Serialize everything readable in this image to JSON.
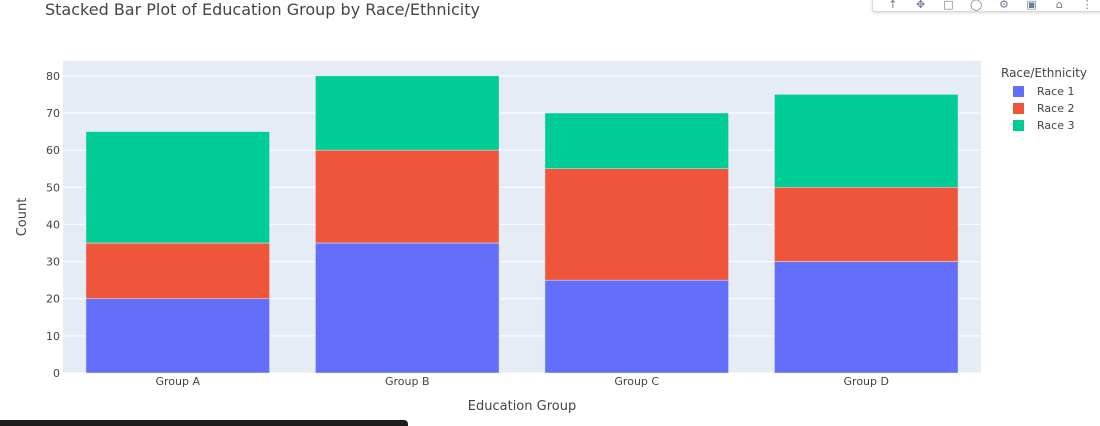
{
  "chart_title": "Stacked Bar Plot of Education Group by Race/Ethnicity",
  "modebar": {
    "icons": [
      "download-plot-icon",
      "pan-icon",
      "box-select-icon",
      "lasso-select-icon",
      "zoom-in-icon",
      "autoscale-icon",
      "reset-axes-icon",
      "more-icon"
    ]
  },
  "chart_data": {
    "type": "bar",
    "barmode": "stack",
    "title": "Stacked Bar Plot of Education Group by Race/Ethnicity",
    "xlabel": "Education Group",
    "ylabel": "Count",
    "categories": [
      "Group A",
      "Group B",
      "Group C",
      "Group D"
    ],
    "series": [
      {
        "name": "Race 1",
        "color": "#636efa",
        "values": [
          20,
          35,
          25,
          30
        ]
      },
      {
        "name": "Race 2",
        "color": "#ef553b",
        "values": [
          15,
          25,
          30,
          20
        ]
      },
      {
        "name": "Race 3",
        "color": "#00cc96",
        "values": [
          30,
          20,
          15,
          25
        ]
      }
    ],
    "ylim": [
      0,
      84
    ],
    "yticks": [
      0,
      10,
      20,
      30,
      40,
      50,
      60,
      70,
      80
    ],
    "legend_title": "Race/Ethnicity",
    "legend_position": "top-right",
    "grid": true,
    "plot_background": "#e5ecf6"
  }
}
